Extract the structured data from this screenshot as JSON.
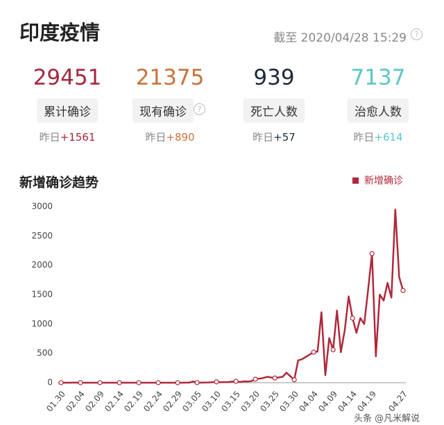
{
  "header": {
    "title": "印度疫情",
    "timestamp": "截至 2020/04/28 15:29"
  },
  "stats": [
    {
      "value": 29451,
      "label": "累计确诊",
      "delta_label": "昨日",
      "delta": "+1561",
      "color": "#a3283c"
    },
    {
      "value": 21375,
      "label": "现有确诊",
      "delta_label": "昨日",
      "delta": "+890",
      "color": "#c8733a"
    },
    {
      "value": 939,
      "label": "死亡人数",
      "delta_label": "昨日",
      "delta": "+57",
      "color": "#1d2a3c"
    },
    {
      "value": 7137,
      "label": "治愈人数",
      "delta_label": "昨日",
      "delta": "+614",
      "color": "#5cc6c6"
    }
  ],
  "chart_data": {
    "type": "line",
    "title": "新增确诊趋势",
    "categories": [
      "01.30",
      null,
      null,
      null,
      null,
      "02.04",
      null,
      null,
      null,
      null,
      "02.09",
      null,
      null,
      null,
      null,
      "02.14",
      null,
      null,
      null,
      null,
      "02.19",
      null,
      null,
      null,
      null,
      "02.24",
      null,
      null,
      null,
      null,
      "02.29",
      null,
      null,
      null,
      null,
      "03.05",
      null,
      null,
      null,
      null,
      "03.10",
      null,
      null,
      null,
      null,
      "03.15",
      null,
      null,
      null,
      null,
      "03.20",
      null,
      null,
      null,
      null,
      "03.25",
      null,
      null,
      null,
      null,
      "03.30",
      null,
      null,
      null,
      null,
      "04.04",
      null,
      null,
      null,
      null,
      "04.09",
      null,
      null,
      null,
      null,
      "04.14",
      null,
      null,
      null,
      null,
      "04.19",
      null,
      null,
      null,
      null,
      null,
      null,
      null,
      "04.27"
    ],
    "series": [
      {
        "name": "新增确诊",
        "color": "#b0283a",
        "values": [
          1,
          0,
          0,
          1,
          1,
          0,
          0,
          0,
          0,
          0,
          0,
          0,
          0,
          0,
          0,
          0,
          0,
          0,
          0,
          0,
          0,
          0,
          0,
          0,
          0,
          0,
          0,
          0,
          0,
          0,
          0,
          0,
          2,
          1,
          22,
          2,
          1,
          3,
          5,
          9,
          15,
          8,
          10,
          10,
          20,
          24,
          12,
          23,
          20,
          28,
          60,
          70,
          80,
          100,
          90,
          80,
          90,
          100,
          170,
          110,
          50,
          380,
          400,
          440,
          480,
          520,
          530,
          1200,
          130,
          760,
          560,
          1230,
          520,
          900,
          1470,
          1100,
          850,
          1100,
          1000,
          1580,
          2200,
          450,
          1500,
          1400,
          1700,
          1450,
          2950,
          1800,
          1570
        ]
      }
    ],
    "ylim": [
      0,
      3000
    ],
    "yticks": [
      0,
      500,
      1000,
      1500,
      2000,
      2500,
      3000
    ],
    "legend": "top-right"
  },
  "watermark": "头条 @凡米解说"
}
